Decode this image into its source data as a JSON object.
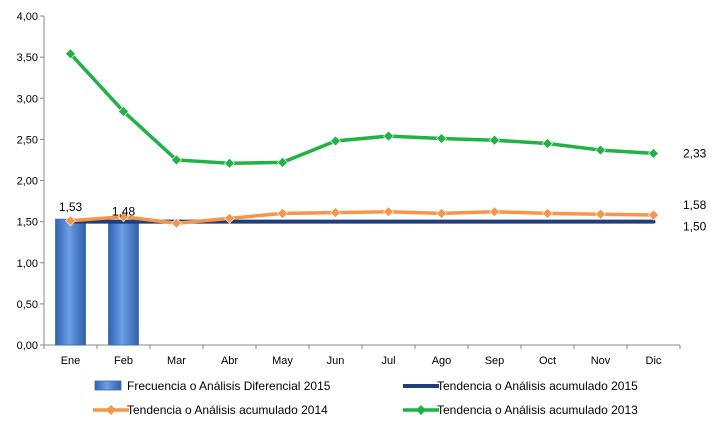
{
  "chart_data": {
    "type": "bar+line",
    "title": "",
    "xlabel": "",
    "ylabel": "",
    "ylim": [
      0,
      4
    ],
    "yticks": [
      "0,00",
      "0,50",
      "1,00",
      "1,50",
      "2,00",
      "2,50",
      "3,00",
      "3,50",
      "4,00"
    ],
    "grid": false,
    "legend_position": "bottom",
    "categories": [
      "Ene",
      "Feb",
      "Mar",
      "Abr",
      "May",
      "Jun",
      "Jul",
      "Ago",
      "Sep",
      "Oct",
      "Nov",
      "Dic"
    ],
    "series": [
      {
        "name": "Frecuencia o Análisis Diferencial 2015",
        "type": "bar",
        "color": "#4a7fcf",
        "values": [
          1.53,
          1.48,
          null,
          null,
          null,
          null,
          null,
          null,
          null,
          null,
          null,
          null
        ],
        "labels": [
          "1,53",
          "1,48",
          "",
          "",
          "",
          "",
          "",
          "",
          "",
          "",
          "",
          ""
        ]
      },
      {
        "name": "Tendencia o Análisis acumulado 2015",
        "type": "line",
        "color": "#1f3f7a",
        "marker": "none",
        "values": [
          1.5,
          1.5,
          1.5,
          1.5,
          1.5,
          1.5,
          1.5,
          1.5,
          1.5,
          1.5,
          1.5,
          1.5
        ],
        "end_label": "1,50"
      },
      {
        "name": "Tendencia o Análisis acumulado 2014",
        "type": "line",
        "color": "#f79646",
        "marker": "diamond",
        "values": [
          1.51,
          1.56,
          1.48,
          1.54,
          1.6,
          1.61,
          1.62,
          1.6,
          1.62,
          1.6,
          1.59,
          1.58
        ],
        "end_label": "1,58"
      },
      {
        "name": "Tendencia o Análisis acumulado 2013",
        "type": "line",
        "color": "#1fb344",
        "marker": "diamond",
        "values": [
          3.54,
          2.84,
          2.25,
          2.21,
          2.22,
          2.48,
          2.54,
          2.51,
          2.49,
          2.45,
          2.37,
          2.33
        ],
        "end_label": "2,33"
      }
    ]
  }
}
